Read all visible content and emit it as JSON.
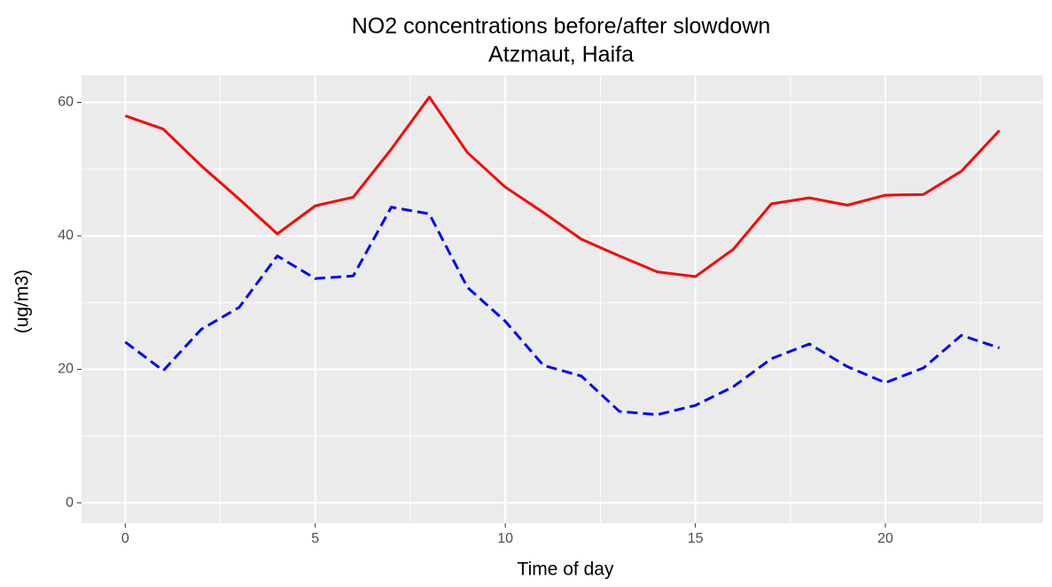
{
  "chart_data": {
    "type": "line",
    "title": [
      "NO2 concentrations before/after slowdown",
      "Atzmaut, Haifa"
    ],
    "xlabel": "Time of day",
    "ylabel": "(ug/m3)",
    "x": [
      0,
      1,
      2,
      3,
      4,
      5,
      6,
      7,
      8,
      9,
      10,
      11,
      12,
      13,
      14,
      15,
      16,
      17,
      18,
      19,
      20,
      21,
      22,
      23
    ],
    "series": [
      {
        "color": "#ff0000",
        "linetype": "solid",
        "values": [
          58,
          56,
          50.5,
          45.5,
          40.3,
          44.5,
          45.8,
          53,
          60.8,
          52.5,
          47.3,
          43.5,
          39.5,
          37,
          34.6,
          33.9,
          38,
          44.8,
          45.7,
          44.6,
          46.1,
          46.2,
          49.7,
          55.8
        ]
      },
      {
        "color": "#0000ff",
        "linetype": "dashed",
        "values": [
          24.1,
          19.8,
          26,
          29.3,
          37,
          33.6,
          34,
          44.3,
          43.3,
          32.3,
          27.2,
          20.6,
          19,
          13.7,
          13.2,
          14.6,
          17.4,
          21.6,
          23.8,
          20.4,
          18,
          20.2,
          25.1,
          23.2
        ]
      }
    ],
    "xlim": [
      -1.15,
      24.15
    ],
    "xticks": [
      0,
      5,
      10,
      15,
      20
    ],
    "ylim": [
      -3.05,
      64.05
    ],
    "yticks": [
      0,
      20,
      40,
      60
    ],
    "xminor": [
      2.5,
      7.5,
      12.5,
      17.5,
      22.5
    ],
    "yminor": [
      10,
      30,
      50
    ],
    "grid": true,
    "panel_color": "#ebebeb"
  }
}
